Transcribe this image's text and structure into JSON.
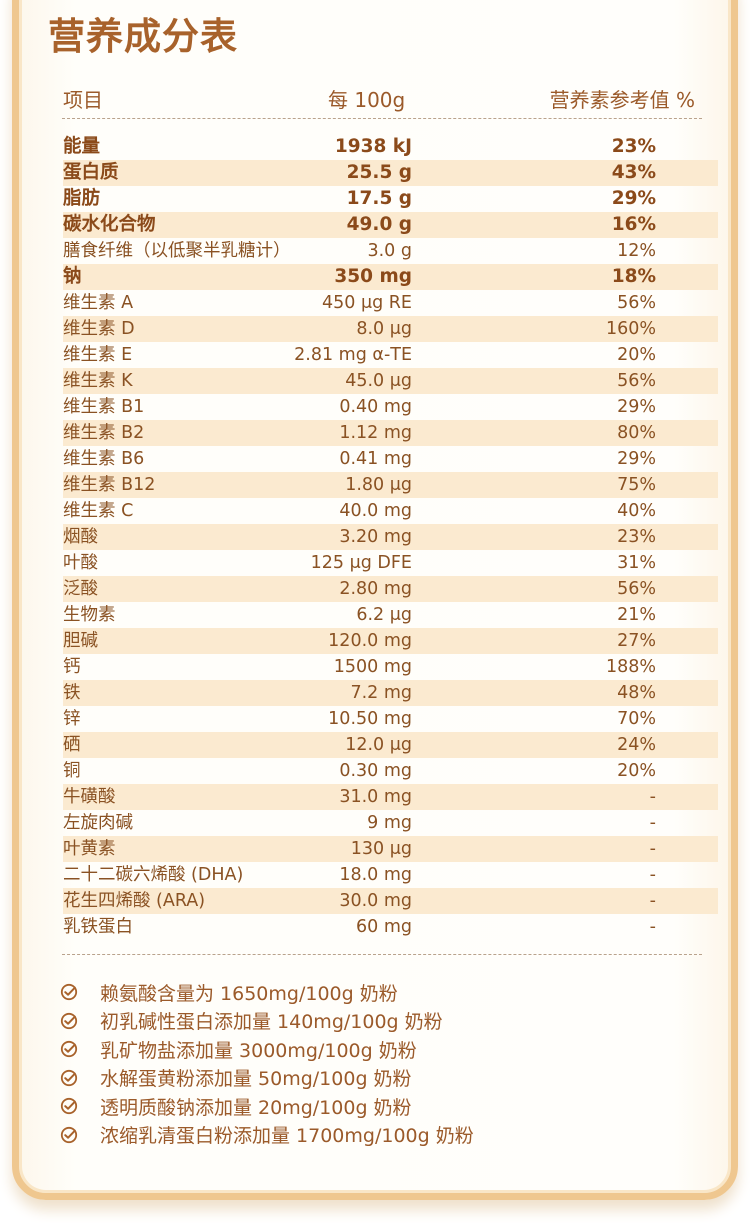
{
  "title": "营养成分表",
  "header": {
    "item": "项目",
    "per": "每 100g",
    "ref": "营养素参考值 %"
  },
  "rows": [
    {
      "name": "能量",
      "val": "1938 kJ",
      "ref": "23%",
      "bold": true,
      "alt": false
    },
    {
      "name": "蛋白质",
      "val": "25.5 g",
      "ref": "43%",
      "bold": true,
      "alt": true
    },
    {
      "name": "脂肪",
      "val": "17.5 g",
      "ref": "29%",
      "bold": true,
      "alt": false
    },
    {
      "name": "碳水化合物",
      "val": "49.0 g",
      "ref": "16%",
      "bold": true,
      "alt": true
    },
    {
      "name": "膳食纤维（以低聚半乳糖计）",
      "val": "3.0 g",
      "ref": "12%",
      "bold": false,
      "alt": false
    },
    {
      "name": "钠",
      "val": "350 mg",
      "ref": "18%",
      "bold": true,
      "alt": true
    },
    {
      "name": "维生素 A",
      "val": "450 μg RE",
      "ref": "56%",
      "bold": false,
      "alt": false
    },
    {
      "name": "维生素 D",
      "val": "8.0 μg",
      "ref": "160%",
      "bold": false,
      "alt": true
    },
    {
      "name": "维生素 E",
      "val": "2.81 mg α-TE",
      "ref": "20%",
      "bold": false,
      "alt": false
    },
    {
      "name": "维生素 K",
      "val": "45.0 μg",
      "ref": "56%",
      "bold": false,
      "alt": true
    },
    {
      "name": "维生素 B1",
      "val": "0.40 mg",
      "ref": "29%",
      "bold": false,
      "alt": false
    },
    {
      "name": "维生素 B2",
      "val": "1.12 mg",
      "ref": "80%",
      "bold": false,
      "alt": true
    },
    {
      "name": "维生素 B6",
      "val": "0.41 mg",
      "ref": "29%",
      "bold": false,
      "alt": false
    },
    {
      "name": "维生素 B12",
      "val": "1.80 μg",
      "ref": "75%",
      "bold": false,
      "alt": true
    },
    {
      "name": "维生素 C",
      "val": "40.0 mg",
      "ref": "40%",
      "bold": false,
      "alt": false
    },
    {
      "name": "烟酸",
      "val": "3.20 mg",
      "ref": "23%",
      "bold": false,
      "alt": true
    },
    {
      "name": "叶酸",
      "val": "125 μg DFE",
      "ref": "31%",
      "bold": false,
      "alt": false
    },
    {
      "name": "泛酸",
      "val": "2.80 mg",
      "ref": "56%",
      "bold": false,
      "alt": true
    },
    {
      "name": "生物素",
      "val": "6.2 μg",
      "ref": "21%",
      "bold": false,
      "alt": false
    },
    {
      "name": "胆碱",
      "val": "120.0 mg",
      "ref": "27%",
      "bold": false,
      "alt": true
    },
    {
      "name": "钙",
      "val": "1500 mg",
      "ref": "188%",
      "bold": false,
      "alt": false
    },
    {
      "name": "铁",
      "val": "7.2 mg",
      "ref": "48%",
      "bold": false,
      "alt": true
    },
    {
      "name": "锌",
      "val": "10.50 mg",
      "ref": "70%",
      "bold": false,
      "alt": false
    },
    {
      "name": "硒",
      "val": "12.0 μg",
      "ref": "24%",
      "bold": false,
      "alt": true
    },
    {
      "name": "铜",
      "val": "0.30 mg",
      "ref": "20%",
      "bold": false,
      "alt": false
    },
    {
      "name": "牛磺酸",
      "val": "31.0 mg",
      "ref": "-",
      "bold": false,
      "alt": true
    },
    {
      "name": "左旋肉碱",
      "val": "9 mg",
      "ref": "-",
      "bold": false,
      "alt": false
    },
    {
      "name": "叶黄素",
      "val": "130 μg",
      "ref": "-",
      "bold": false,
      "alt": true
    },
    {
      "name": "二十二碳六烯酸 (DHA)",
      "val": "18.0 mg",
      "ref": "-",
      "bold": false,
      "alt": false
    },
    {
      "name": "花生四烯酸 (ARA)",
      "val": "30.0 mg",
      "ref": "-",
      "bold": false,
      "alt": true
    },
    {
      "name": "乳铁蛋白",
      "val": "60 mg",
      "ref": "-",
      "bold": false,
      "alt": false
    }
  ],
  "notes": [
    "赖氨酸含量为 1650mg/100g 奶粉",
    "初乳碱性蛋白添加量 140mg/100g 奶粉",
    "乳矿物盐添加量 3000mg/100g 奶粉",
    "水解蛋黄粉添加量 50mg/100g 奶粉",
    "透明质酸钠添加量 20mg/100g 奶粉",
    "浓缩乳清蛋白粉添加量 1700mg/100g 奶粉"
  ],
  "icons": {
    "note": "check-circle-icon"
  },
  "colors": {
    "accent": "#a8622b",
    "stripe": "#fbead0",
    "border": "#efc78f"
  }
}
